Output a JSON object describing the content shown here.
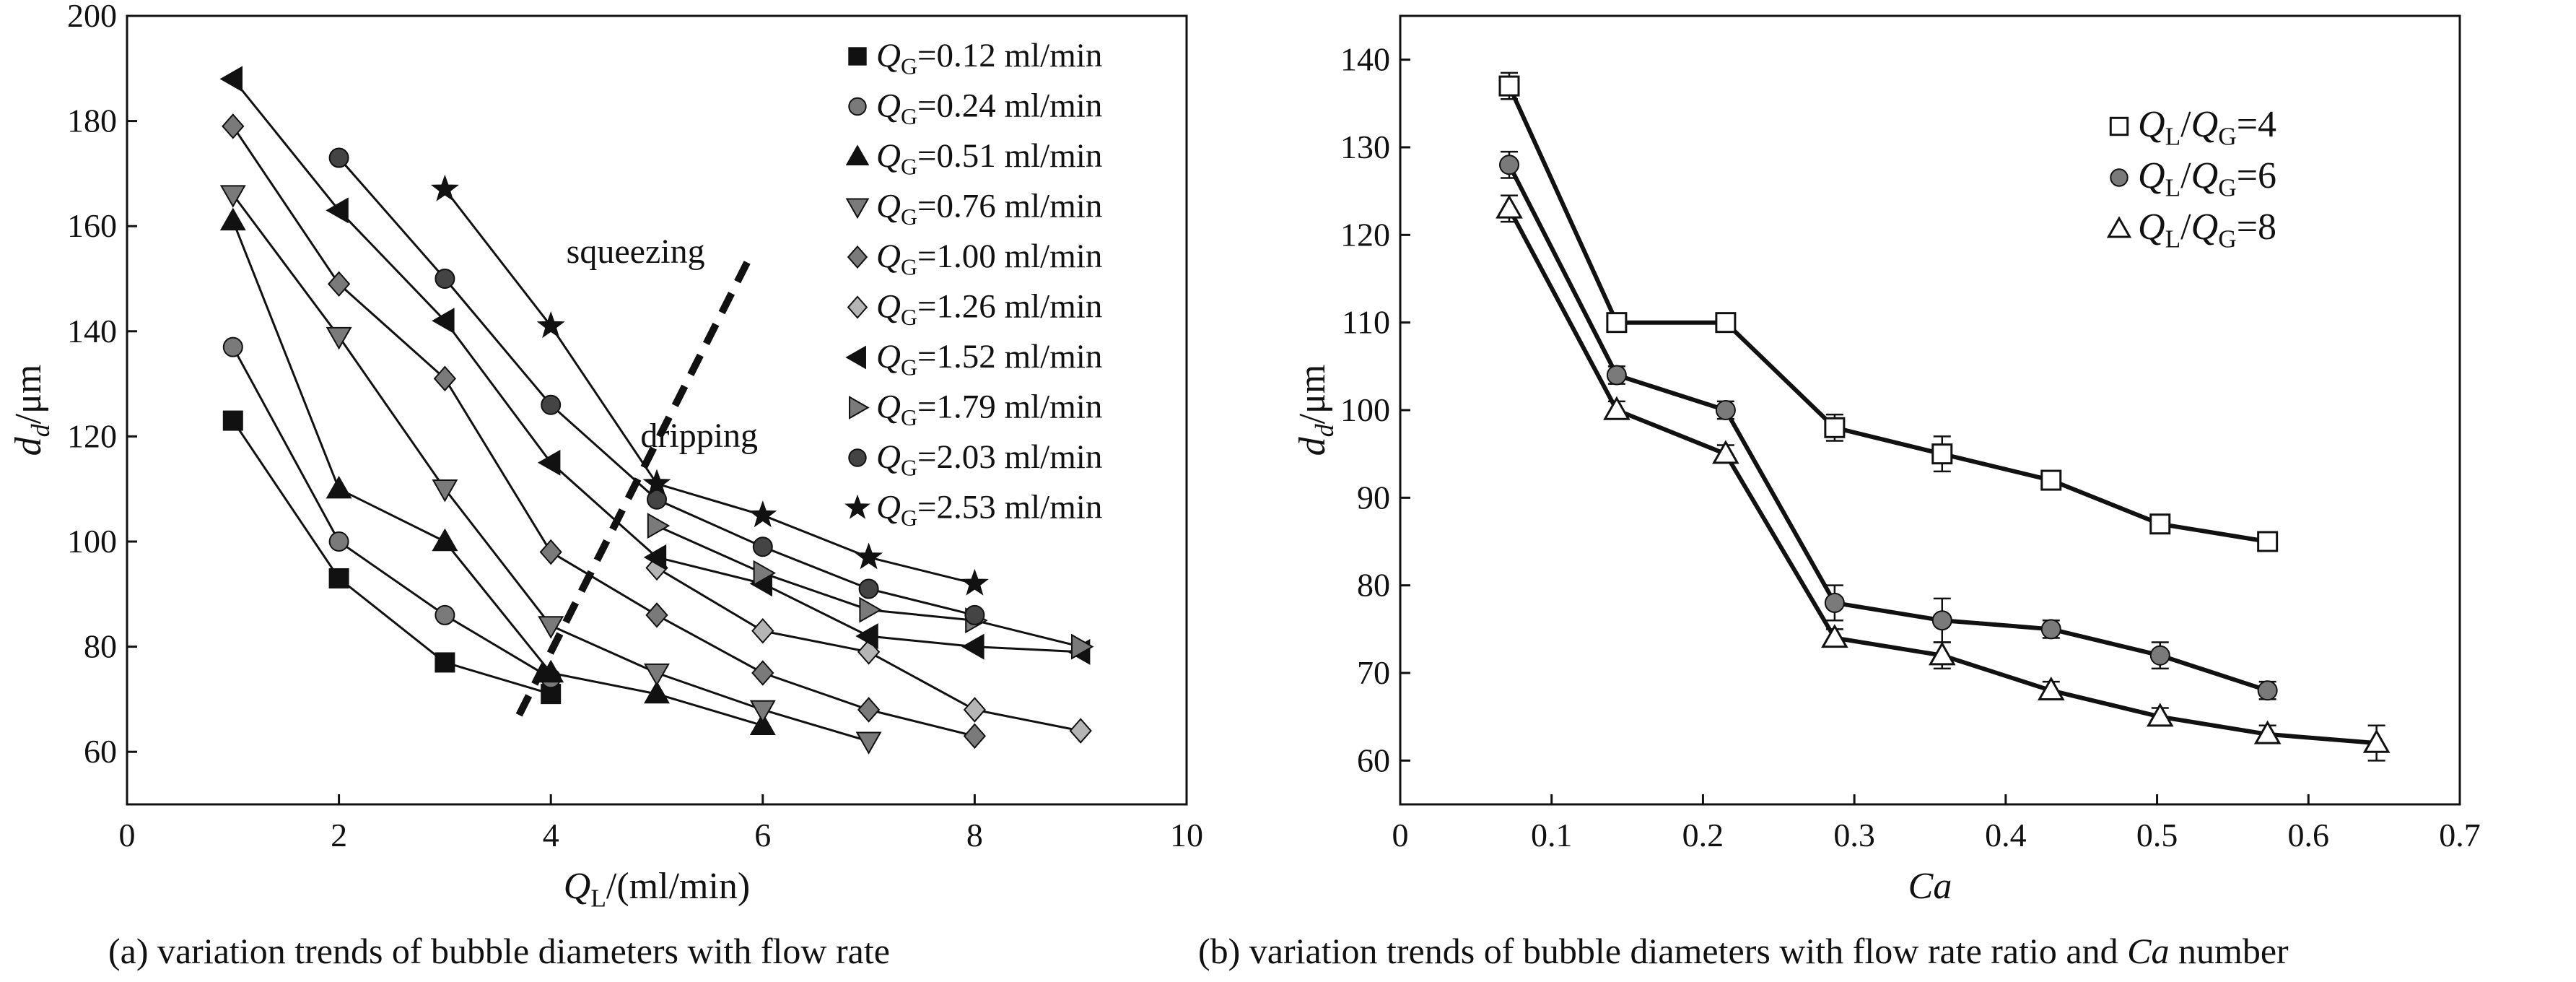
{
  "figure": {
    "caption_a": "(a) variation trends of bubble diameters with flow rate",
    "caption_b_prefix": "(b) variation trends of bubble diameters with flow rate ratio and ",
    "caption_b_italic": "Ca",
    "caption_b_suffix": " number"
  },
  "chart_data": [
    {
      "id": "a",
      "type": "line",
      "title": "",
      "xlabel": "Q_L/(ml/min)",
      "ylabel": "d_d/μm",
      "xlim": [
        0,
        10
      ],
      "ylim": [
        50,
        200
      ],
      "xticks": [
        0,
        2,
        4,
        6,
        8,
        10
      ],
      "yticks": [
        60,
        80,
        100,
        120,
        140,
        160,
        180,
        200
      ],
      "legend_position": "top-right",
      "annotations": [
        {
          "text": "squeezing",
          "x": 4.8,
          "y": 153
        },
        {
          "text": "dripping",
          "x": 5.4,
          "y": 118
        }
      ],
      "regime_boundary": {
        "style": "dashed",
        "points": [
          [
            3.7,
            67
          ],
          [
            5.9,
            155
          ]
        ]
      },
      "series": [
        {
          "name": "Q_G=0.12 ml/min",
          "marker": "square-filled",
          "x": [
            1,
            2,
            3,
            4
          ],
          "y": [
            123,
            93,
            77,
            71
          ]
        },
        {
          "name": "Q_G=0.24 ml/min",
          "marker": "circle-gray",
          "x": [
            1,
            2,
            3,
            4
          ],
          "y": [
            137,
            100,
            86,
            74
          ]
        },
        {
          "name": "Q_G=0.51 ml/min",
          "marker": "triangle-up-filled",
          "x": [
            1,
            2,
            3,
            4,
            5,
            6
          ],
          "y": [
            161,
            110,
            100,
            75,
            71,
            65
          ]
        },
        {
          "name": "Q_G=0.76 ml/min",
          "marker": "triangle-down-gray",
          "x": [
            1,
            2,
            3,
            4,
            5,
            6,
            7
          ],
          "y": [
            166,
            139,
            110,
            84,
            75,
            68,
            62
          ]
        },
        {
          "name": "Q_G=1.00 ml/min",
          "marker": "diamond-gray",
          "x": [
            1,
            2,
            3,
            4,
            5,
            6,
            7,
            8
          ],
          "y": [
            179,
            149,
            131,
            98,
            86,
            75,
            68,
            63
          ]
        },
        {
          "name": "Q_G=1.26 ml/min",
          "marker": "diamond-light",
          "x": [
            5,
            6,
            7,
            8,
            9
          ],
          "y": [
            95,
            83,
            79,
            68,
            64
          ]
        },
        {
          "name": "Q_G=1.52 ml/min",
          "marker": "triangle-left-filled",
          "x": [
            1,
            2,
            3,
            4,
            5,
            6,
            7,
            8,
            9
          ],
          "y": [
            188,
            163,
            142,
            115,
            97,
            92,
            82,
            80,
            79
          ]
        },
        {
          "name": "Q_G=1.79 ml/min",
          "marker": "triangle-right-gray",
          "x": [
            5,
            6,
            7,
            8,
            9
          ],
          "y": [
            103,
            94,
            87,
            85,
            80
          ]
        },
        {
          "name": "Q_G=2.03 ml/min",
          "marker": "circle-dark",
          "x": [
            2,
            3,
            4,
            5,
            6,
            7,
            8
          ],
          "y": [
            173,
            150,
            126,
            108,
            99,
            91,
            86
          ]
        },
        {
          "name": "Q_G=2.53 ml/min",
          "marker": "star",
          "x": [
            3,
            4,
            5,
            6,
            7,
            8
          ],
          "y": [
            167,
            141,
            111,
            105,
            97,
            92
          ]
        }
      ]
    },
    {
      "id": "b",
      "type": "line",
      "title": "",
      "xlabel": "Ca",
      "ylabel": "d_d/μm",
      "xlim": [
        0,
        0.7
      ],
      "ylim": [
        55,
        145
      ],
      "xticks": [
        0,
        0.1,
        0.2,
        0.3,
        0.4,
        0.5,
        0.6,
        0.7
      ],
      "xtick_labels": [
        "0",
        "0.1",
        "0.2",
        "0.3",
        "0.4",
        "0.5",
        "0.6",
        "0.7"
      ],
      "yticks": [
        60,
        70,
        80,
        90,
        100,
        110,
        120,
        130,
        140
      ],
      "legend_position": "top-right",
      "error_bars": true,
      "series": [
        {
          "name": "Q_L/Q_G=4",
          "marker": "square-open",
          "x": [
            0.072,
            0.143,
            0.215,
            0.287,
            0.358,
            0.43,
            0.502,
            0.573
          ],
          "y": [
            137,
            110,
            110,
            98,
            95,
            92,
            87,
            85
          ],
          "err": [
            1.5,
            1,
            1,
            1.5,
            2,
            1,
            1,
            1
          ]
        },
        {
          "name": "Q_L/Q_G=6",
          "marker": "circle-gray",
          "x": [
            0.072,
            0.143,
            0.215,
            0.287,
            0.358,
            0.43,
            0.502,
            0.573
          ],
          "y": [
            128,
            104,
            100,
            78,
            76,
            75,
            72,
            68
          ],
          "err": [
            1.5,
            1,
            1,
            2,
            2.5,
            1,
            1.5,
            1
          ]
        },
        {
          "name": "Q_L/Q_G=8",
          "marker": "triangle-open",
          "x": [
            0.072,
            0.143,
            0.215,
            0.287,
            0.358,
            0.43,
            0.502,
            0.573,
            0.645
          ],
          "y": [
            123,
            100,
            95,
            74,
            72,
            68,
            65,
            63,
            62
          ],
          "err": [
            1.5,
            1,
            1,
            1,
            1.5,
            1,
            1,
            1,
            2
          ]
        }
      ]
    }
  ]
}
